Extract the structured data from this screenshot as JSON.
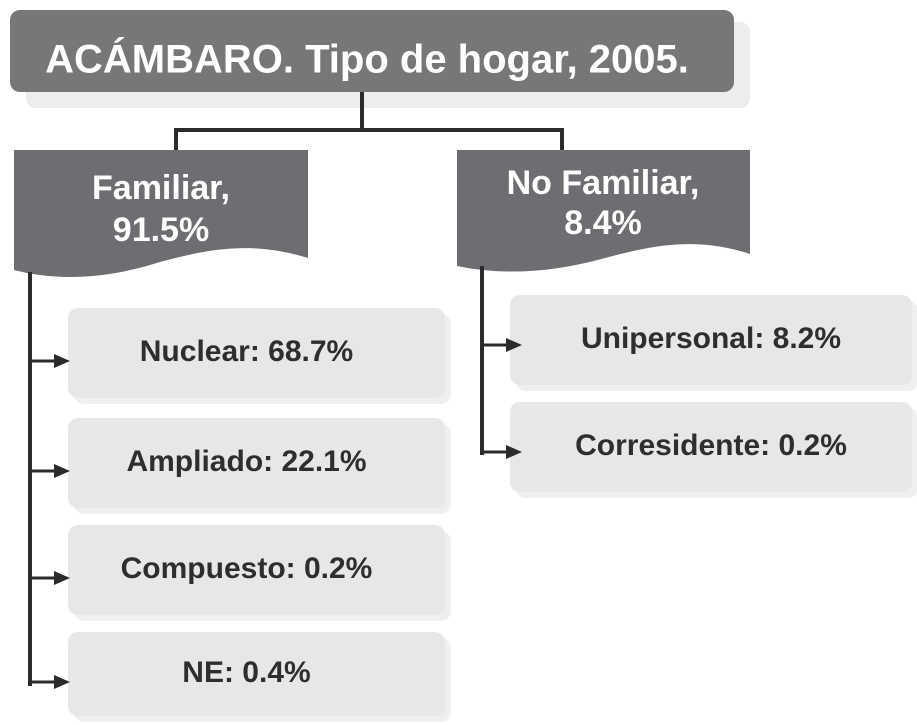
{
  "title": "ACÁMBARO. Tipo de hogar, 2005.",
  "branches": [
    {
      "label": [
        "Familiar,",
        "91.5%"
      ],
      "children": [
        "Nuclear: 68.7%",
        "Ampliado: 22.1%",
        "Compuesto: 0.2%",
        "NE: 0.4%"
      ]
    },
    {
      "label": [
        "No Familiar,",
        "8.4%"
      ],
      "children": [
        "Unipersonal: 8.2%",
        "Corresidente: 0.2%"
      ]
    }
  ]
}
